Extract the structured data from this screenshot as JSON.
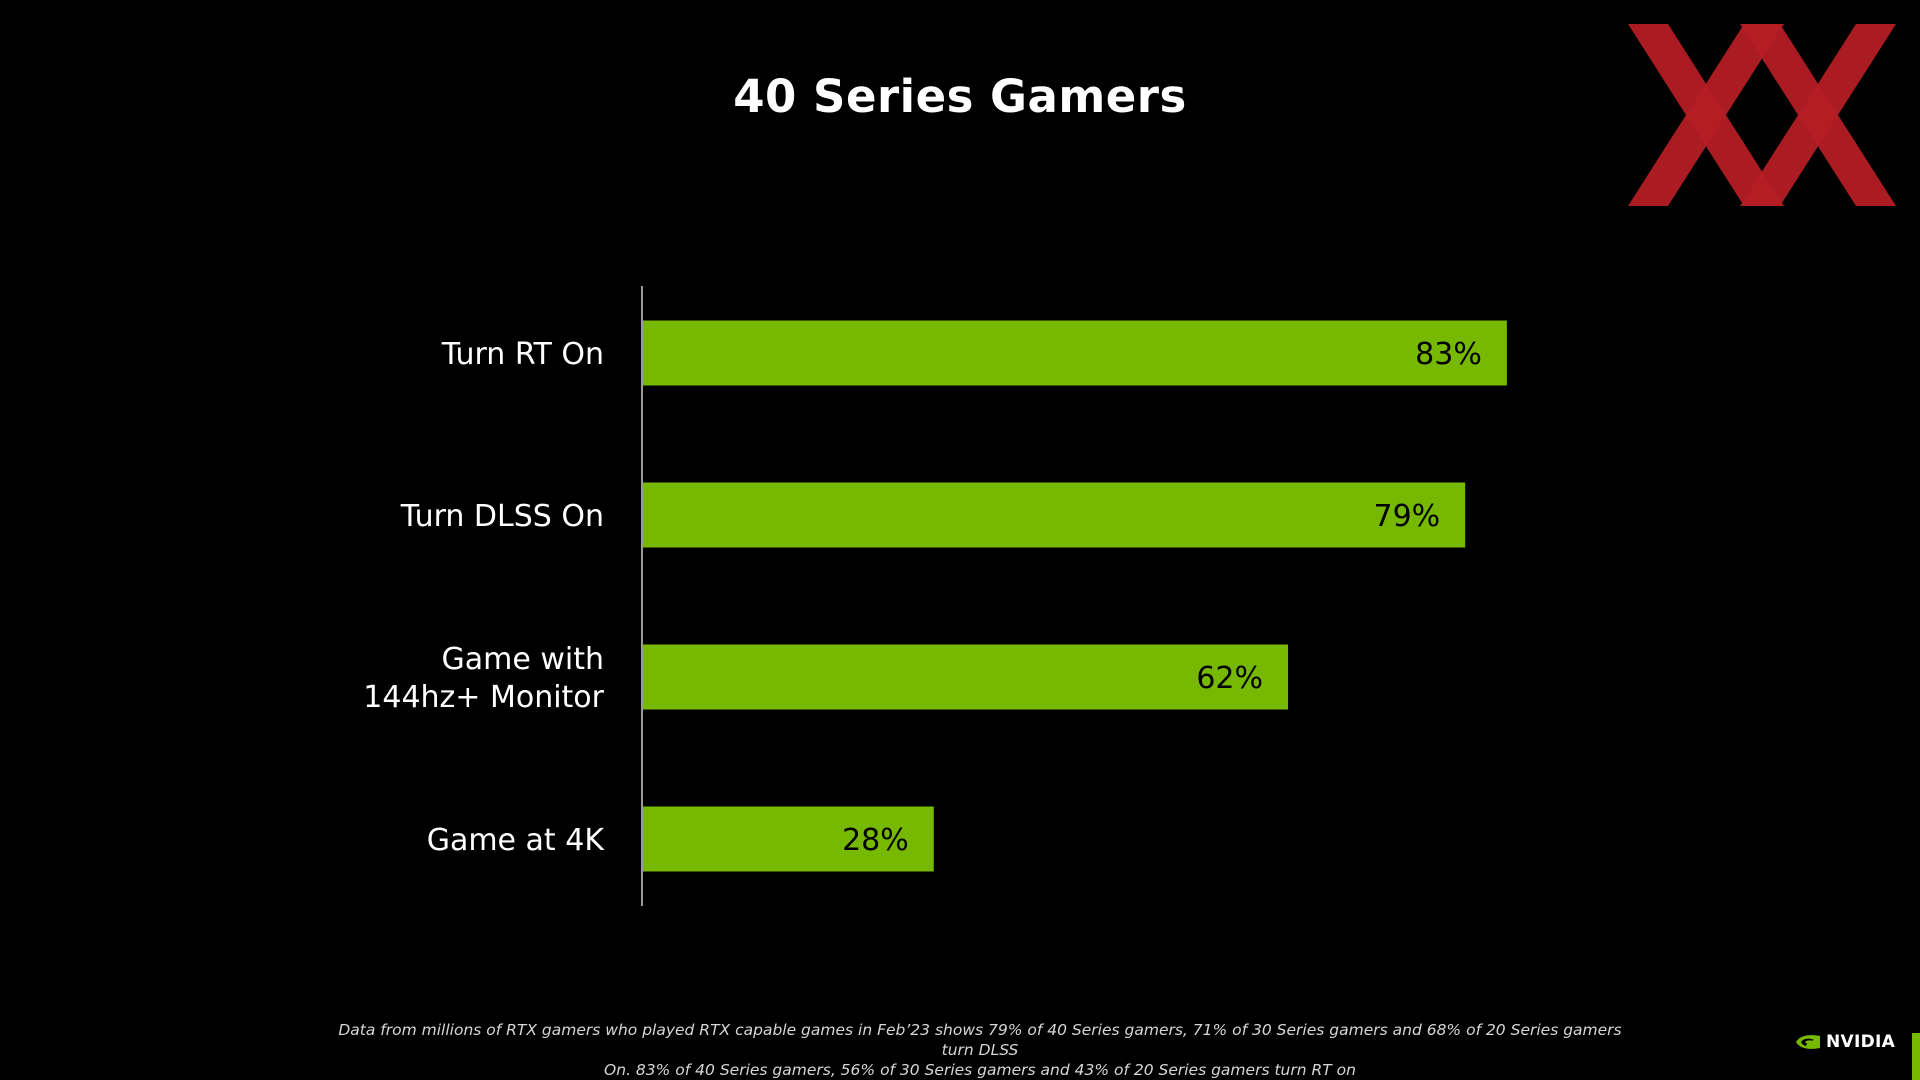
{
  "title": "40 Series Gamers",
  "chart_data": {
    "type": "bar",
    "orientation": "horizontal",
    "categories": [
      [
        "Turn RT On"
      ],
      [
        "Turn DLSS On"
      ],
      [
        "Game with ",
        "144hz+ Monitor"
      ],
      [
        "Game at 4K"
      ]
    ],
    "values": [
      83,
      79,
      62,
      28
    ],
    "value_labels": [
      "83%",
      "79%",
      "62%",
      "28%"
    ],
    "title": "40 Series Gamers",
    "xlabel": "",
    "ylabel": "",
    "xlim": [
      0,
      100
    ],
    "grid": false,
    "legend": "none",
    "bar_color": "#76b900",
    "axis_color": "#9a9a9a"
  },
  "footnote": {
    "line1": "Data from millions of RTX gamers who played RTX capable games in Feb’23 shows 79% of 40 Series gamers, 71% of 30 Series gamers and 68% of 20 Series gamers turn DLSS",
    "line2": "On.  83% of 40 Series gamers, 56% of 30 Series gamers and 43% of 20 Series gamers turn RT on"
  },
  "brand": {
    "wordmark": "NVIDIA",
    "eye_icon": "nvidia-eye-icon",
    "watermark_icon": "xx-logo-icon"
  },
  "colors": {
    "background": "#000000",
    "accent_green": "#76b900",
    "logo_red": "#b31d24"
  }
}
